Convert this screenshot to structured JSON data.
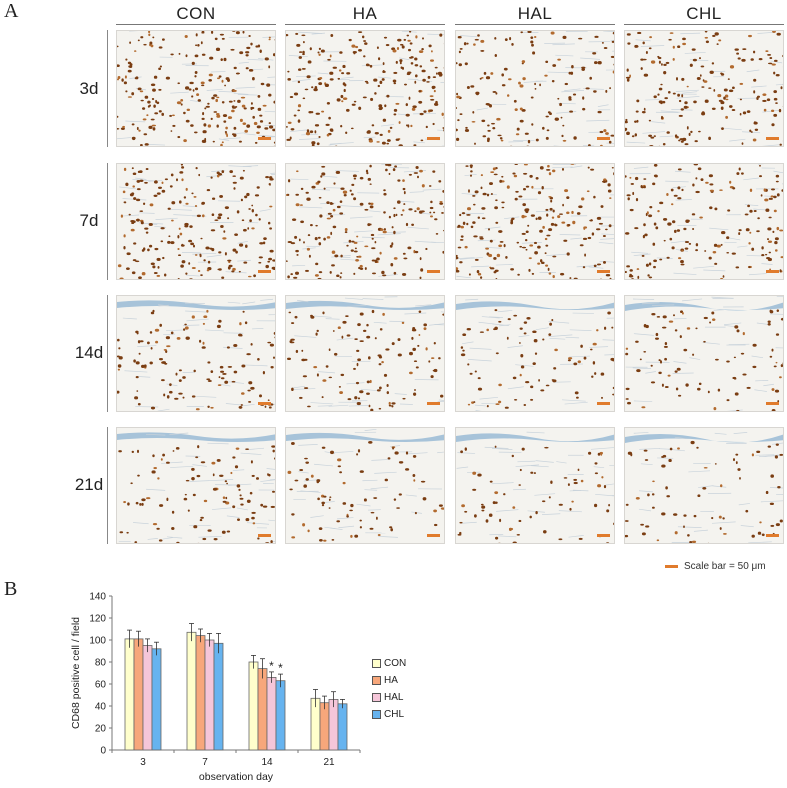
{
  "panel_a": {
    "letter": "A",
    "columns": [
      "CON",
      "HA",
      "HAL",
      "CHL"
    ],
    "rows": [
      "3d",
      "7d",
      "14d",
      "21d"
    ],
    "scale_legend": "Scale bar = 50 μm",
    "scale_color": "#e07b2c",
    "tissue_colors": {
      "background": "#f4f3ef",
      "nuclei_brown": "#7a3d12",
      "hematoxylin_blue": "#a7c3d9"
    }
  },
  "panel_b": {
    "letter": "B",
    "significance_marker": "*"
  },
  "chart_data": {
    "type": "bar",
    "categories": [
      "3",
      "7",
      "14",
      "21"
    ],
    "xlabel": "observation day",
    "ylabel": "CD68 positive cell / field",
    "ylim": [
      0,
      140
    ],
    "yticks": [
      0,
      20,
      40,
      60,
      80,
      100,
      120,
      140
    ],
    "grid": false,
    "legend_position": "right",
    "series": [
      {
        "name": "CON",
        "color": "#ffffcc",
        "values": [
          101,
          107,
          80,
          47
        ],
        "errors": [
          8,
          8,
          6,
          8
        ]
      },
      {
        "name": "HA",
        "color": "#f7a77b",
        "values": [
          101,
          104,
          74,
          43
        ],
        "errors": [
          7,
          6,
          9,
          6
        ]
      },
      {
        "name": "HAL",
        "color": "#f5c6d9",
        "values": [
          95,
          100,
          66,
          46
        ],
        "errors": [
          6,
          6,
          5,
          7
        ]
      },
      {
        "name": "CHL",
        "color": "#66b3ef",
        "values": [
          92,
          97,
          63,
          42
        ],
        "errors": [
          6,
          9,
          6,
          4
        ]
      }
    ],
    "annotations": [
      {
        "text": "*",
        "category": "14",
        "series": "HAL"
      },
      {
        "text": "*",
        "category": "14",
        "series": "CHL"
      }
    ]
  }
}
